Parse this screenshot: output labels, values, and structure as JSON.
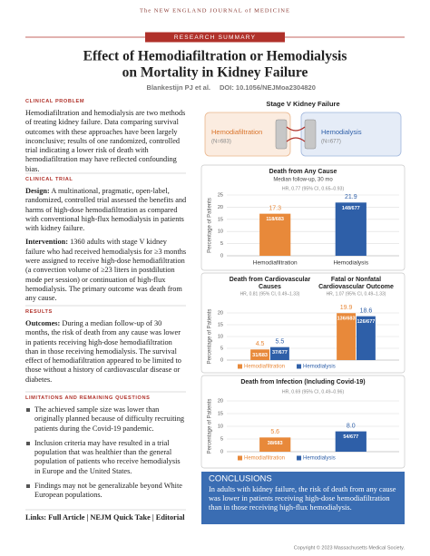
{
  "header": {
    "journal": "The NEW ENGLAND JOURNAL of MEDICINE",
    "section": "RESEARCH SUMMARY",
    "title_lines": [
      "Effect of Hemodiafiltration or Hemodialysis",
      "on Mortality in Kidney Failure"
    ],
    "authors": "Blankestijn PJ et al.",
    "doi": "DOI: 10.1056/NEJMoa2304820"
  },
  "sections": [
    {
      "heading": "CLINICAL PROBLEM",
      "paragraphs": [
        {
          "text": "Hemodiafiltration and hemodialysis are two methods of treating kidney failure. Data comparing survival outcomes with these approaches have been largely inconclusive; results of one randomized, controlled trial indicating a lower risk of death with hemodiafiltration may have reflected confounding bias."
        }
      ]
    },
    {
      "heading": "CLINICAL TRIAL",
      "paragraphs": [
        {
          "lead": "Design:",
          "text": "A multinational, pragmatic, open-label, randomized, controlled trial assessed the benefits and harms of high-dose hemodiafiltration as compared with conventional high-flux hemodialysis in patients with kidney failure."
        },
        {
          "lead": "Intervention:",
          "text": "1360 adults with stage V kidney failure who had received hemodialysis for ≥3 months were assigned to receive high-dose hemodiafiltration (a convection volume of ≥23 liters in postdilution mode per session) or continuation of high-flux hemodialysis. The primary outcome was death from any cause."
        }
      ]
    },
    {
      "heading": "RESULTS",
      "paragraphs": [
        {
          "lead": "Outcomes:",
          "text": "During a median follow-up of 30 months, the risk of death from any cause was lower in patients receiving high-dose hemodiafiltration than in those receiving hemodialysis. The survival effect of hemodiafiltration appeared to be limited to those without a history of cardiovascular disease or diabetes."
        }
      ]
    },
    {
      "heading": "LIMITATIONS AND REMAINING QUESTIONS",
      "items": [
        "The achieved sample size was lower than originally planned because of difficulty recruiting patients during the Covid-19 pandemic.",
        "Inclusion criteria may have resulted in a trial population that was healthier than the general population of patients who receive hemodialysis in Europe and the United States.",
        "Findings may not be generalizable beyond White European populations."
      ]
    }
  ],
  "links": "Links: Full Article | NEJM Quick Take | Editorial",
  "population": {
    "title": "Stage V Kidney Failure",
    "groups": [
      {
        "name": "Hemodiafiltration",
        "n": "(N=683)",
        "color": "#d9742b"
      },
      {
        "name": "Hemodialysis",
        "n": "(N=677)",
        "color": "#2e5fa8"
      }
    ]
  },
  "charts": [
    {
      "type": "bar",
      "title": "Death from Any Cause",
      "subtitle": "Median follow-up, 30 mo",
      "hr": "HR, 0.77 (95% CI, 0.65–0.93)",
      "y_label": "Percentage of Patients",
      "ylim": [
        0,
        25
      ],
      "yticks": [
        0,
        5,
        10,
        15,
        20,
        25
      ],
      "legend": "x-axis",
      "series": [
        {
          "name": "Hemodiafiltration",
          "color": "#e8893a",
          "values": [
            17.3
          ],
          "counts": [
            "118/683"
          ]
        },
        {
          "name": "Hemodialysis",
          "color": "#2e5fa8",
          "values": [
            21.9
          ],
          "counts": [
            "148/677"
          ]
        }
      ]
    },
    {
      "type": "grouped_bar",
      "categories": [
        "Death from Cardiovascular Causes",
        "Fatal or Nonfatal Cardiovascular Outcome"
      ],
      "hr": [
        "HR, 0.81 (95% CI, 0.49–1.33)",
        "HR, 1.07 (95% CI, 0.49–1.33)"
      ],
      "y_label": "Percentage of Patients",
      "ylim": [
        0,
        20
      ],
      "yticks": [
        0,
        5,
        10,
        15,
        20
      ],
      "legend": "bottom",
      "series": [
        {
          "name": "Hemodiafiltration",
          "color": "#e8893a",
          "values": [
            4.5,
            19.9
          ],
          "counts": [
            "31/683",
            "136/683"
          ]
        },
        {
          "name": "Hemodialysis",
          "color": "#2e5fa8",
          "values": [
            5.5,
            18.6
          ],
          "counts": [
            "37/677",
            "126/677"
          ]
        }
      ]
    },
    {
      "type": "bar",
      "title": "Death from Infection (Including Covid-19)",
      "hr": "HR, 0.69 (95% CI, 0.49–0.96)",
      "y_label": "Percentage of Patients",
      "ylim": [
        0,
        20
      ],
      "yticks": [
        0,
        5,
        10,
        15,
        20
      ],
      "legend": "bottom",
      "series": [
        {
          "name": "Hemodiafiltration",
          "color": "#e8893a",
          "values": [
            5.6
          ],
          "counts": [
            "38/683"
          ]
        },
        {
          "name": "Hemodialysis",
          "color": "#2e5fa8",
          "values": [
            8.0
          ],
          "value_labels": [
            "8.0"
          ],
          "counts": [
            "54/677"
          ]
        }
      ]
    }
  ],
  "conclusions": {
    "heading": "CONCLUSIONS",
    "text": "In adults with kidney failure, the risk of death from any cause was lower in patients receiving high-dose hemodiafiltration than in those receiving high-flux hemodialysis."
  },
  "copyright": "Copyright © 2023 Massachusetts Medical Society."
}
